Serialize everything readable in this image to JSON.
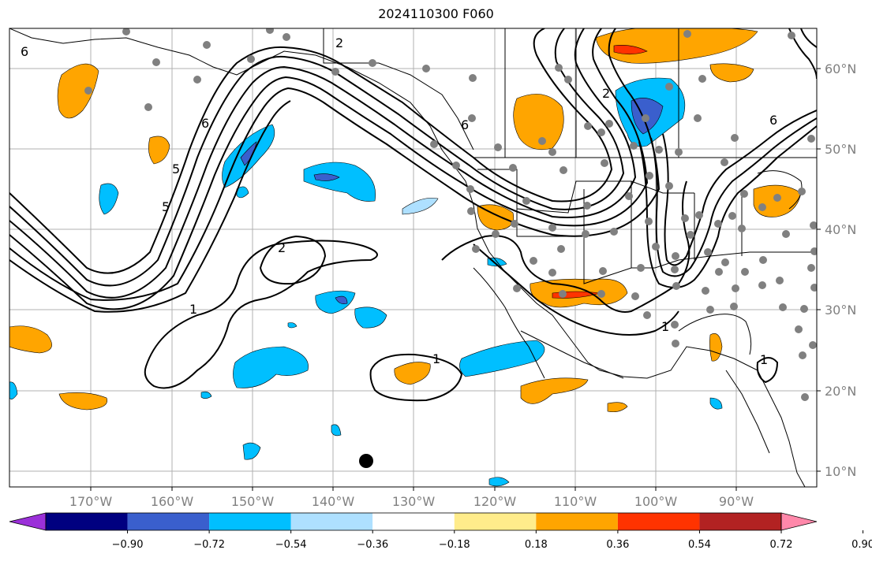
{
  "title": "2024110300 F060",
  "lon_labels": [
    "170°W",
    "160°W",
    "150°W",
    "140°W",
    "130°W",
    "120°W",
    "110°W",
    "100°W",
    "90°W"
  ],
  "lat_labels": [
    "60°N",
    "50°N",
    "40°N",
    "30°N",
    "20°N",
    "10°N"
  ],
  "colorbar": {
    "ticks": [
      "−0.90",
      "−0.72",
      "−0.54",
      "−0.36",
      "−0.18",
      "0.18",
      "0.36",
      "0.54",
      "0.72",
      "0.90"
    ],
    "colors": [
      "#9b30d9",
      "#000080",
      "#3a5fcd",
      "#00bfff",
      "#aee0ff",
      "#ffffff",
      "#ffec8b",
      "#ffa500",
      "#ff3300",
      "#b22222",
      "#ff88aa"
    ]
  },
  "contour_labels": [
    "6",
    "5",
    "6",
    "5",
    "2",
    "1",
    "1",
    "6",
    "2",
    "2",
    "6",
    "1",
    "1"
  ],
  "marker_description": "black-dot"
}
